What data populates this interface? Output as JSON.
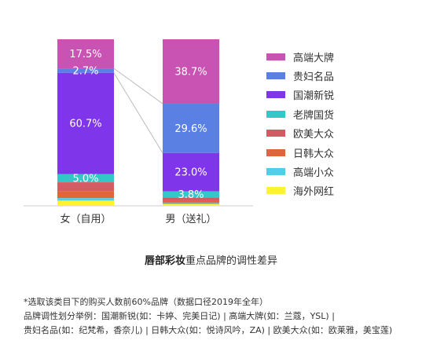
{
  "chart_data": {
    "type": "bar",
    "stacked": true,
    "normalized": true,
    "categories": [
      "女（自用）",
      "男（送礼）"
    ],
    "series": [
      {
        "name": "高端大牌",
        "color": "#c853b3",
        "values": [
          17.5,
          38.7
        ]
      },
      {
        "name": "贵妇名品",
        "color": "#5a80e4",
        "values": [
          2.7,
          29.6
        ]
      },
      {
        "name": "国潮新锐",
        "color": "#7f35ea",
        "values": [
          60.7,
          23.0
        ]
      },
      {
        "name": "老牌国货",
        "color": "#33c7c7",
        "values": [
          5.0,
          3.8
        ]
      },
      {
        "name": "欧美大众",
        "color": "#d35b63",
        "values": [
          5.2,
          1.6
        ]
      },
      {
        "name": "日韩大众",
        "color": "#e2653a",
        "values": [
          4.3,
          1.6
        ]
      },
      {
        "name": "高端小众",
        "color": "#4fd0ea",
        "values": [
          1.5,
          0.8
        ]
      },
      {
        "name": "海外网红",
        "color": "#fff233",
        "values": [
          3.1,
          0.9
        ]
      }
    ],
    "data_labels": [
      {
        "series": 0,
        "category": 0,
        "text": "17.5%"
      },
      {
        "series": 1,
        "category": 0,
        "text": "2.7%"
      },
      {
        "series": 2,
        "category": 0,
        "text": "60.7%"
      },
      {
        "series": 3,
        "category": 0,
        "text": "5.0%"
      },
      {
        "series": 0,
        "category": 1,
        "text": "38.7%"
      },
      {
        "series": 1,
        "category": 1,
        "text": "29.6%"
      },
      {
        "series": 2,
        "category": 1,
        "text": "23.0%"
      },
      {
        "series": 3,
        "category": 1,
        "text": "3.8%"
      }
    ],
    "ylim": [
      0,
      100
    ],
    "legend_position": "right",
    "connector_lines": "贵妇名品"
  },
  "caption": {
    "bold": "唇部彩妆",
    "rest": "重点品牌的调性差异"
  },
  "footnote": [
    "*选取该类目下的购买人数前60%品牌（数据口径2019年全年）",
    "品牌调性划分举例：国潮新锐(如：卡婷、完美日记) | 高端大牌(如：兰蔻，YSL) |",
    "贵妇名品(如：纪梵希，香奈儿) | 日韩大众(如：悦诗风吟，ZA) | 欧美大众(如：欧莱雅，美宝莲)"
  ]
}
